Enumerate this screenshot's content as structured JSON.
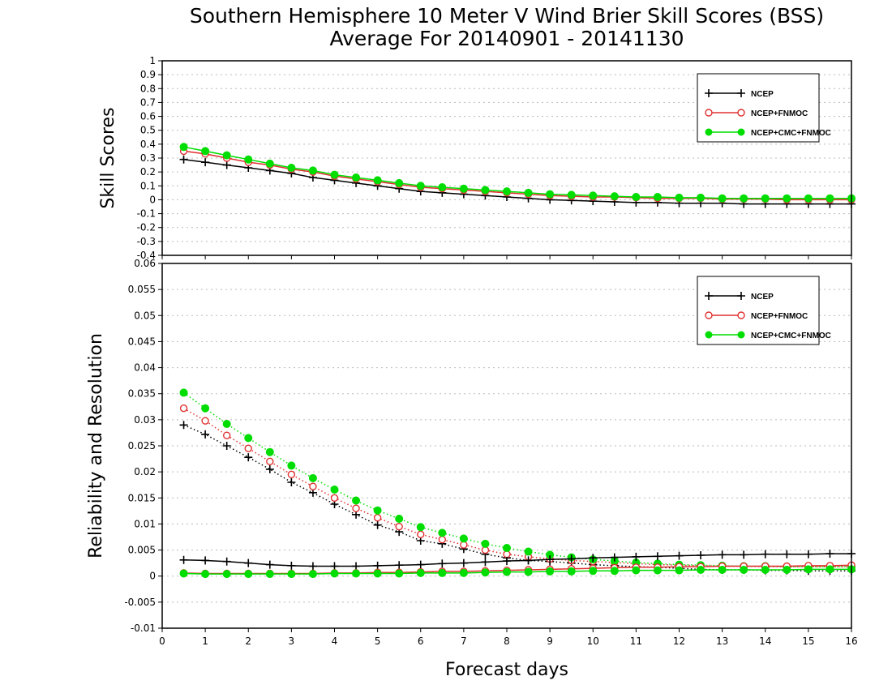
{
  "title_line1": "Southern Hemisphere 10 Meter V Wind Brier Skill Scores (BSS)",
  "title_line2": "Average For 20140901 - 20141130",
  "xlabel": "Forecast days",
  "colors": {
    "ncep": "#000000",
    "fnmoc": "#e03030",
    "cmc": "#00dd00"
  },
  "chart_data": [
    {
      "type": "line",
      "name": "skill",
      "ylabel": "Skill Scores",
      "xlim": [
        0,
        16
      ],
      "ylim": [
        -0.4,
        1
      ],
      "xticks": [
        0,
        1,
        2,
        3,
        4,
        5,
        6,
        7,
        8,
        9,
        10,
        11,
        12,
        13,
        14,
        15,
        16
      ],
      "yticks": [
        -0.4,
        -0.3,
        -0.2,
        -0.1,
        0,
        0.1,
        0.2,
        0.3,
        0.4,
        0.5,
        0.6,
        0.7,
        0.8,
        0.9,
        1
      ],
      "ytick_labels": [
        "-0.4",
        "-0.3",
        "-0.2",
        "-0.1",
        "0",
        "0.1",
        "0.2",
        "0.3",
        "0.4",
        "0.5",
        "0.6",
        "0.7",
        "0.8",
        "0.9",
        "1"
      ],
      "grid": true,
      "legend_position": "top-right",
      "x": [
        0.5,
        1,
        1.5,
        2,
        2.5,
        3,
        3.5,
        4,
        4.5,
        5,
        5.5,
        6,
        6.5,
        7,
        7.5,
        8,
        8.5,
        9,
        9.5,
        10,
        10.5,
        11,
        11.5,
        12,
        12.5,
        13,
        13.5,
        14,
        14.5,
        15,
        15.5,
        16
      ],
      "series": [
        {
          "name": "NCEP",
          "color": "#000000",
          "marker": "plus",
          "style": "solid",
          "values": [
            0.29,
            0.27,
            0.25,
            0.23,
            0.21,
            0.19,
            0.16,
            0.14,
            0.12,
            0.1,
            0.08,
            0.06,
            0.05,
            0.04,
            0.03,
            0.02,
            0.01,
            0.0,
            -0.005,
            -0.01,
            -0.015,
            -0.02,
            -0.02,
            -0.025,
            -0.025,
            -0.025,
            -0.03,
            -0.03,
            -0.03,
            -0.03,
            -0.03,
            -0.03
          ]
        },
        {
          "name": "NCEP+FNMOC",
          "color": "#e03030",
          "marker": "circle-open",
          "style": "solid",
          "values": [
            0.35,
            0.33,
            0.3,
            0.27,
            0.25,
            0.22,
            0.2,
            0.17,
            0.15,
            0.13,
            0.11,
            0.09,
            0.08,
            0.07,
            0.06,
            0.05,
            0.04,
            0.03,
            0.025,
            0.02,
            0.02,
            0.015,
            0.01,
            0.01,
            0.01,
            0.005,
            0.005,
            0.005,
            0.0,
            0.0,
            0.0,
            0.0
          ]
        },
        {
          "name": "NCEP+CMC+FNMOC",
          "color": "#00dd00",
          "marker": "circle-filled",
          "style": "solid",
          "values": [
            0.38,
            0.35,
            0.32,
            0.29,
            0.26,
            0.23,
            0.21,
            0.18,
            0.16,
            0.14,
            0.12,
            0.1,
            0.09,
            0.08,
            0.07,
            0.06,
            0.05,
            0.04,
            0.035,
            0.03,
            0.025,
            0.02,
            0.02,
            0.015,
            0.015,
            0.01,
            0.01,
            0.01,
            0.01,
            0.01,
            0.01,
            0.01
          ]
        }
      ]
    },
    {
      "type": "line",
      "name": "reliability_resolution",
      "ylabel": "Reliability and Resolution",
      "xlim": [
        0,
        16
      ],
      "ylim": [
        -0.01,
        0.06
      ],
      "xticks": [
        0,
        1,
        2,
        3,
        4,
        5,
        6,
        7,
        8,
        9,
        10,
        11,
        12,
        13,
        14,
        15,
        16
      ],
      "yticks": [
        -0.01,
        -0.005,
        0,
        0.005,
        0.01,
        0.015,
        0.02,
        0.025,
        0.03,
        0.035,
        0.04,
        0.045,
        0.05,
        0.055,
        0.06
      ],
      "ytick_labels": [
        "-0.01",
        "-0.005",
        "0",
        "0.005",
        "0.01",
        "0.015",
        "0.02",
        "0.025",
        "0.03",
        "0.035",
        "0.04",
        "0.045",
        "0.05",
        "0.055",
        "0.06"
      ],
      "grid": true,
      "legend_position": "top-right",
      "x": [
        0.5,
        1,
        1.5,
        2,
        2.5,
        3,
        3.5,
        4,
        4.5,
        5,
        5.5,
        6,
        6.5,
        7,
        7.5,
        8,
        8.5,
        9,
        9.5,
        10,
        10.5,
        11,
        11.5,
        12,
        12.5,
        13,
        13.5,
        14,
        14.5,
        15,
        15.5,
        16
      ],
      "series": [
        {
          "name": "NCEP",
          "color": "#000000",
          "marker": "plus",
          "style": "dotted",
          "values": [
            0.029,
            0.0272,
            0.025,
            0.0228,
            0.0205,
            0.018,
            0.016,
            0.0138,
            0.0118,
            0.0098,
            0.0085,
            0.0068,
            0.0062,
            0.0052,
            0.0042,
            0.0035,
            0.003,
            0.0028,
            0.0025,
            0.0022,
            0.002,
            0.0018,
            0.0017,
            0.0015,
            0.0013,
            0.0012,
            0.0012,
            0.0011,
            0.0011,
            0.001,
            0.001,
            0.001
          ]
        },
        {
          "name": "NCEP+FNMOC",
          "color": "#e03030",
          "marker": "circle-open",
          "style": "dotted",
          "values": [
            0.0322,
            0.0298,
            0.027,
            0.0245,
            0.022,
            0.0195,
            0.0172,
            0.015,
            0.013,
            0.0112,
            0.0095,
            0.008,
            0.007,
            0.006,
            0.005,
            0.0042,
            0.0037,
            0.0033,
            0.003,
            0.0028,
            0.0026,
            0.0024,
            0.0022,
            0.0021,
            0.002,
            0.0019,
            0.0019,
            0.0018,
            0.0018,
            0.0018,
            0.0018,
            0.0018
          ]
        },
        {
          "name": "NCEP+CMC+FNMOC",
          "color": "#00dd00",
          "marker": "circle-filled",
          "style": "dotted",
          "values": [
            0.0352,
            0.0322,
            0.0292,
            0.0265,
            0.0238,
            0.0212,
            0.0188,
            0.0166,
            0.0145,
            0.0126,
            0.011,
            0.0094,
            0.0083,
            0.0072,
            0.0062,
            0.0054,
            0.0047,
            0.0041,
            0.0036,
            0.0032,
            0.0029,
            0.0026,
            0.0024,
            0.0022,
            0.0021,
            0.002,
            0.0019,
            0.0019,
            0.0018,
            0.0018,
            0.0018,
            0.0018
          ]
        },
        {
          "name": "NCEP",
          "color": "#000000",
          "marker": "plus",
          "style": "solid",
          "values": [
            0.0031,
            0.003,
            0.0028,
            0.0025,
            0.0022,
            0.002,
            0.0019,
            0.0019,
            0.0019,
            0.002,
            0.0021,
            0.0022,
            0.0024,
            0.0025,
            0.0027,
            0.0029,
            0.003,
            0.0032,
            0.0033,
            0.0035,
            0.0036,
            0.0037,
            0.0038,
            0.0039,
            0.004,
            0.0041,
            0.0041,
            0.0042,
            0.0042,
            0.0042,
            0.0043,
            0.0043
          ]
        },
        {
          "name": "NCEP+FNMOC",
          "color": "#e03030",
          "marker": "circle-open",
          "style": "solid",
          "values": [
            0.0006,
            0.0005,
            0.0005,
            0.0005,
            0.0005,
            0.0005,
            0.0005,
            0.0006,
            0.0006,
            0.0007,
            0.0007,
            0.0008,
            0.0009,
            0.0009,
            0.001,
            0.0011,
            0.0012,
            0.0013,
            0.0014,
            0.0015,
            0.0016,
            0.0017,
            0.0017,
            0.0018,
            0.0018,
            0.0019,
            0.0019,
            0.0019,
            0.0019,
            0.002,
            0.002,
            0.0021
          ]
        },
        {
          "name": "NCEP+CMC+FNMOC",
          "color": "#00dd00",
          "marker": "circle-filled",
          "style": "solid",
          "values": [
            0.0005,
            0.0004,
            0.0004,
            0.0004,
            0.0004,
            0.0004,
            0.0004,
            0.0005,
            0.0005,
            0.0005,
            0.0005,
            0.0006,
            0.0006,
            0.0006,
            0.0007,
            0.0008,
            0.0008,
            0.0009,
            0.0009,
            0.001,
            0.001,
            0.0011,
            0.0011,
            0.0011,
            0.0012,
            0.0012,
            0.0012,
            0.0012,
            0.0012,
            0.0013,
            0.0013,
            0.0013
          ]
        }
      ]
    }
  ]
}
